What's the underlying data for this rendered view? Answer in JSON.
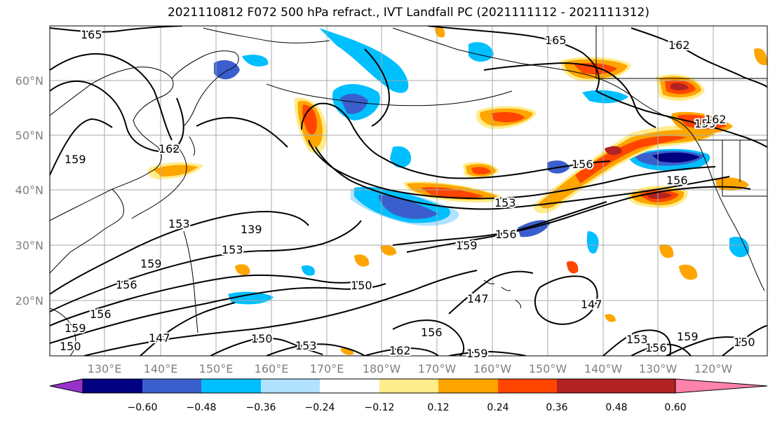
{
  "title": "2021110812 F072 500 hPa refract., IVT Landfall PC (2021111112 - 2021111312)",
  "latitude_labels": [
    "60°N",
    "50°N",
    "40°N",
    "30°N",
    "20°N"
  ],
  "longitude_labels": [
    "130°E",
    "140°E",
    "150°E",
    "160°E",
    "170°E",
    "180°W",
    "170°W",
    "160°W",
    "150°W",
    "140°W",
    "130°W",
    "120°W"
  ],
  "contour_labels": [
    "165",
    "165",
    "162",
    "162",
    "159",
    "159",
    "156",
    "156",
    "153",
    "139",
    "153",
    "159",
    "156",
    "153",
    "159",
    "156",
    "150",
    "147",
    "147",
    "156",
    "147",
    "150",
    "153",
    "162",
    "159",
    "153",
    "156",
    "159",
    "150",
    "159",
    "150",
    "156",
    "162"
  ],
  "colorbar": {
    "ticks": [
      "−0.60",
      "−0.48",
      "−0.36",
      "−0.24",
      "−0.12",
      "0.12",
      "0.24",
      "0.36",
      "0.48",
      "0.60"
    ],
    "colors": [
      "#9932cc",
      "#000080",
      "#3a5fcd",
      "#00bfff",
      "#b0e2ff",
      "#ffffff",
      "#ffec8b",
      "#ffa500",
      "#ff4500",
      "#b22222",
      "#ff82ab"
    ]
  }
}
